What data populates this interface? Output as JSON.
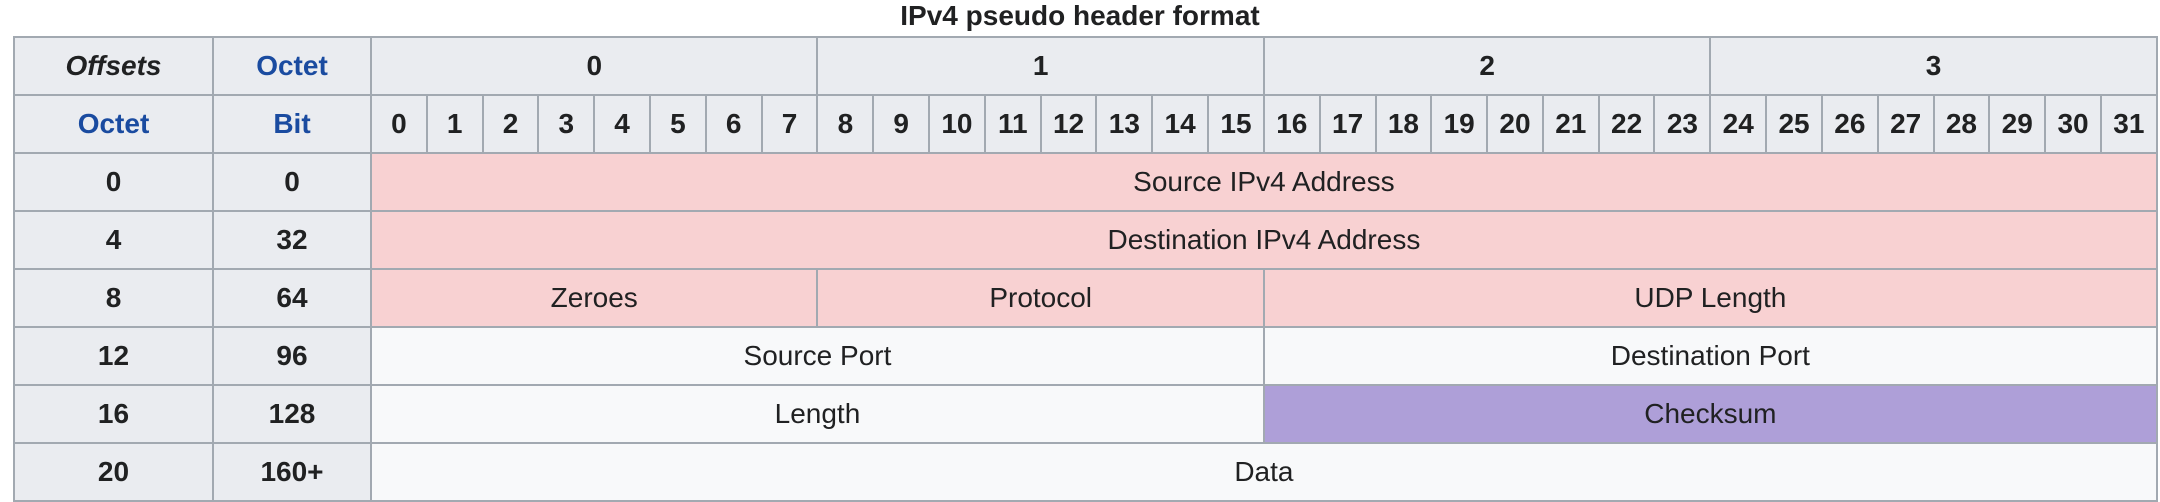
{
  "caption": "IPv4 pseudo header format",
  "header": {
    "offsets_label": "Offsets",
    "octet_label": "Octet",
    "octet_row_label": "Octet",
    "bit_label": "Bit",
    "octets": [
      "0",
      "1",
      "2",
      "3"
    ],
    "bits": [
      "0",
      "1",
      "2",
      "3",
      "4",
      "5",
      "6",
      "7",
      "8",
      "9",
      "10",
      "11",
      "12",
      "13",
      "14",
      "15",
      "16",
      "17",
      "18",
      "19",
      "20",
      "21",
      "22",
      "23",
      "24",
      "25",
      "26",
      "27",
      "28",
      "29",
      "30",
      "31"
    ]
  },
  "rows": [
    {
      "octet": "0",
      "bit": "0",
      "fields": [
        {
          "label": "Source IPv4 Address",
          "span": 32,
          "style": "pink"
        }
      ]
    },
    {
      "octet": "4",
      "bit": "32",
      "fields": [
        {
          "label": "Destination IPv4 Address",
          "span": 32,
          "style": "pink"
        }
      ]
    },
    {
      "octet": "8",
      "bit": "64",
      "fields": [
        {
          "label": "Zeroes",
          "span": 8,
          "style": "pink"
        },
        {
          "label": "Protocol",
          "span": 8,
          "style": "pink"
        },
        {
          "label": "UDP Length",
          "span": 16,
          "style": "pink"
        }
      ]
    },
    {
      "octet": "12",
      "bit": "96",
      "fields": [
        {
          "label": "Source Port",
          "span": 16,
          "style": "white"
        },
        {
          "label": "Destination Port",
          "span": 16,
          "style": "white"
        }
      ]
    },
    {
      "octet": "16",
      "bit": "128",
      "fields": [
        {
          "label": "Length",
          "span": 16,
          "style": "white"
        },
        {
          "label": "Checksum",
          "span": 16,
          "style": "purple"
        }
      ]
    },
    {
      "octet": "20",
      "bit": "160+",
      "fields": [
        {
          "label": "Data",
          "span": 32,
          "style": "white"
        }
      ]
    }
  ],
  "colors": {
    "header_bg": "#eaecf0",
    "pink": "#f8d1d2",
    "white": "#f8f9fa",
    "purple": "#ae9fd8",
    "border": "#a2a9b1",
    "link_blue": "#1a4ba0"
  }
}
